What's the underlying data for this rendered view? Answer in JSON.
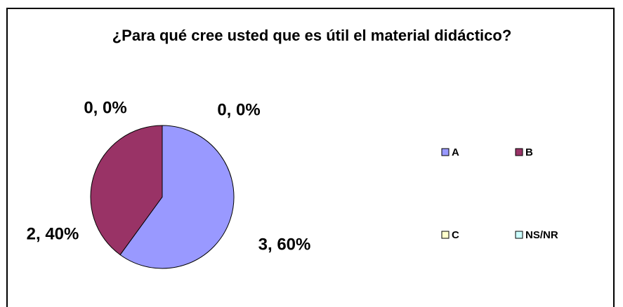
{
  "chart_data": {
    "type": "pie",
    "title": "¿Para qué cree usted que es útil el material didáctico?",
    "categories": [
      "A",
      "B",
      "C",
      "NS/NR"
    ],
    "values": [
      3,
      2,
      0,
      0
    ],
    "value_labels": [
      "3, 60%",
      "2, 40%",
      "0, 0%",
      "0, 0%"
    ],
    "colors": [
      "#9999ff",
      "#993366",
      "#ffffcc",
      "#ccffff"
    ],
    "legend": "right"
  }
}
